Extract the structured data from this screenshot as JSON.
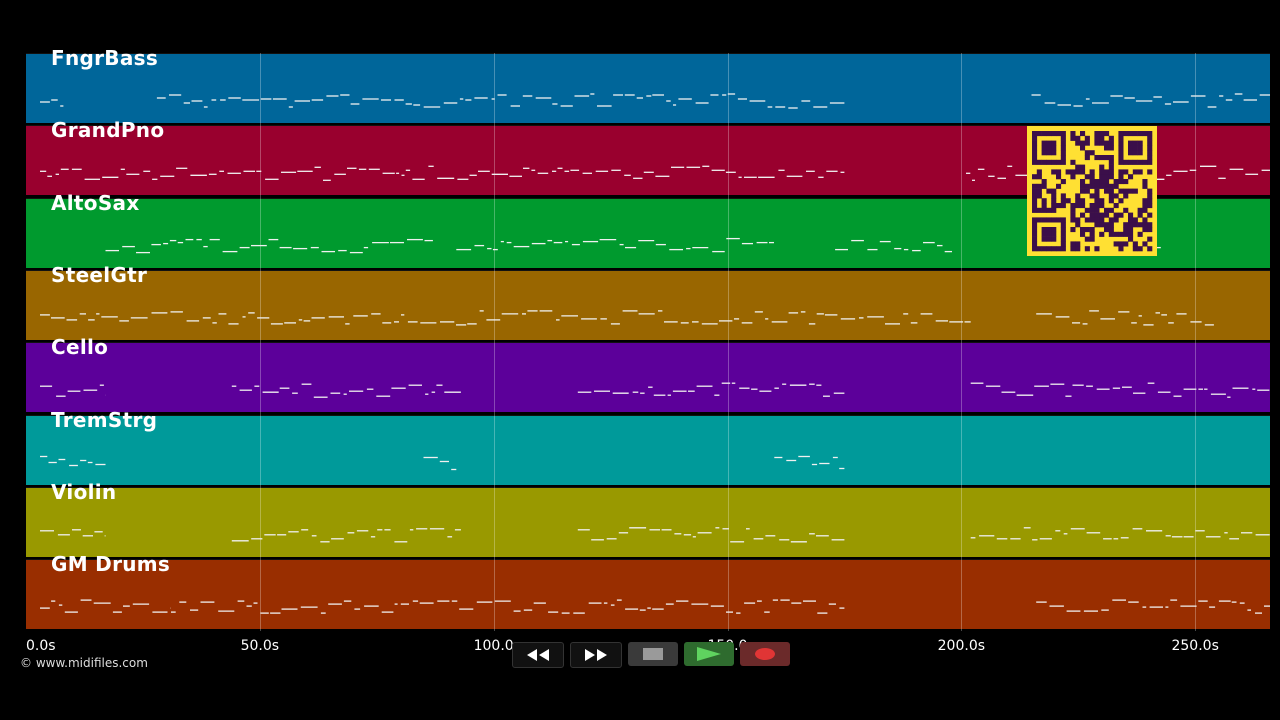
{
  "colors": {
    "background": "#000000",
    "note": "#f0f0f0",
    "qr_bg": "#ffe033",
    "qr_fg": "#3b0f4a"
  },
  "tracks": [
    {
      "name": "FngrBass",
      "color": "#00669a"
    },
    {
      "name": "GrandPno",
      "color": "#99002e"
    },
    {
      "name": "AltoSax",
      "color": "#009a2e"
    },
    {
      "name": "SteelGtr",
      "color": "#996600"
    },
    {
      "name": "Cello",
      "color": "#5c009a"
    },
    {
      "name": "TremStrg",
      "color": "#009a9a"
    },
    {
      "name": "Violin",
      "color": "#999900"
    },
    {
      "name": "GM Drums",
      "color": "#992e00"
    }
  ],
  "time_axis": {
    "min": 0,
    "max": 266,
    "ticks": [
      {
        "value": 0,
        "label": "0.0s"
      },
      {
        "value": 50,
        "label": "50.0s"
      },
      {
        "value": 100,
        "label": "100.0"
      },
      {
        "value": 150,
        "label": "150.0"
      },
      {
        "value": 200,
        "label": "200.0s"
      },
      {
        "value": 250,
        "label": "250.0s"
      }
    ]
  },
  "note_segments": [
    [
      [
        3,
        8
      ],
      [
        28,
        175
      ],
      [
        215,
        266
      ]
    ],
    [
      [
        3,
        175
      ],
      [
        201,
        266
      ]
    ],
    [
      [
        17,
        87
      ],
      [
        92,
        160
      ],
      [
        173,
        198
      ],
      [
        226,
        243
      ]
    ],
    [
      [
        3,
        202
      ],
      [
        216,
        254
      ]
    ],
    [
      [
        3,
        17
      ],
      [
        44,
        93
      ],
      [
        118,
        175
      ],
      [
        202,
        266
      ]
    ],
    [
      [
        3,
        17
      ],
      [
        85,
        92
      ],
      [
        160,
        175
      ]
    ],
    [
      [
        3,
        17
      ],
      [
        44,
        93
      ],
      [
        118,
        175
      ],
      [
        202,
        266
      ]
    ],
    [
      [
        3,
        31
      ],
      [
        31,
        175
      ],
      [
        216,
        266
      ]
    ]
  ],
  "copyright": "© www.midifiles.com",
  "transport": [
    {
      "icon": "rewind-icon",
      "name": "rewind-button"
    },
    {
      "icon": "fast-forward-icon",
      "name": "fast-forward-button"
    },
    {
      "icon": "stop-icon",
      "name": "stop-button"
    },
    {
      "icon": "play-icon",
      "name": "play-button"
    },
    {
      "icon": "record-icon",
      "name": "record-button"
    }
  ]
}
